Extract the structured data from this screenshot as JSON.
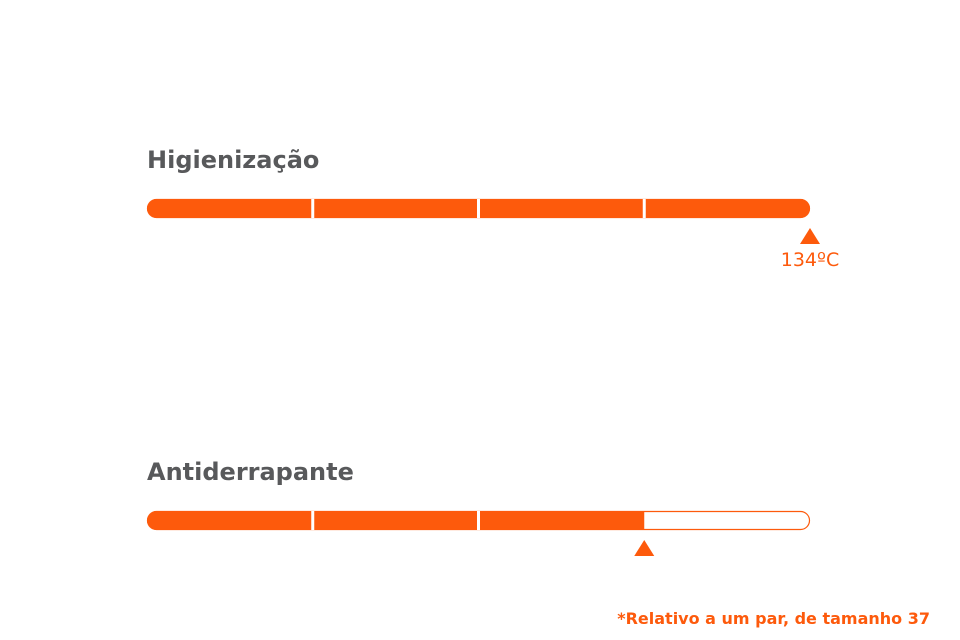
{
  "items": [
    {
      "label": "Higienização",
      "segments": 4,
      "filled": 4,
      "marker_label": "134ºC"
    },
    {
      "label": "Antiderrapante",
      "segments": 4,
      "filled": 3
    }
  ],
  "footnote": "*Relativo a um par, de tamanho 37",
  "color": "#fd5a0c"
}
